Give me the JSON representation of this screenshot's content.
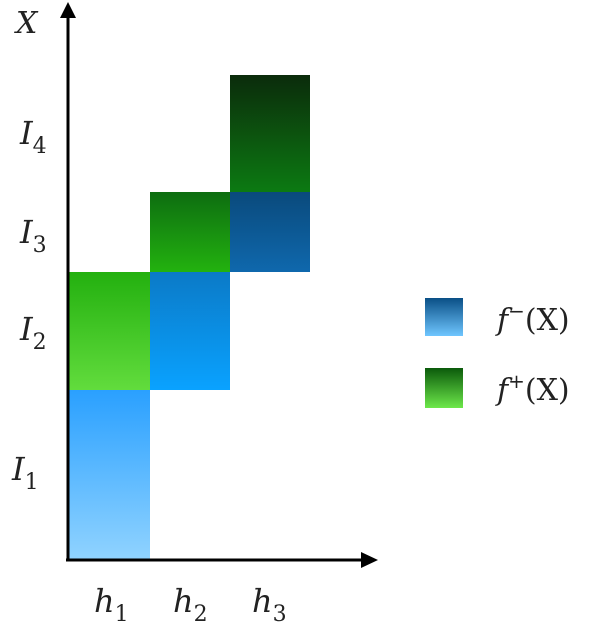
{
  "axes": {
    "y_label": "X",
    "x_ticks": [
      {
        "base": "h",
        "sub": "1"
      },
      {
        "base": "h",
        "sub": "2"
      },
      {
        "base": "h",
        "sub": "3"
      }
    ],
    "y_ticks": [
      {
        "base": "I",
        "sub": "1"
      },
      {
        "base": "I",
        "sub": "2"
      },
      {
        "base": "I",
        "sub": "3"
      },
      {
        "base": "I",
        "sub": "4"
      }
    ]
  },
  "legend": {
    "minus": {
      "base": "f",
      "sup": "−",
      "arg": "(X)"
    },
    "plus": {
      "base": "f",
      "sup": "+",
      "arg": "(X)"
    }
  },
  "colors": {
    "axis": "#000000",
    "blue_top": "#0a4f86",
    "blue_bottom": "#8fd2ff",
    "green_top": "#0b3a0b",
    "green_bottom": "#5fe03a"
  },
  "blocks": [
    {
      "column": "h1",
      "interval": "I1",
      "type": "minus"
    },
    {
      "column": "h1",
      "interval": "I2",
      "type": "plus"
    },
    {
      "column": "h2",
      "interval": "I2",
      "type": "minus"
    },
    {
      "column": "h2",
      "interval": "I3",
      "type": "plus"
    },
    {
      "column": "h3",
      "interval": "I3",
      "type": "minus"
    },
    {
      "column": "h3",
      "interval": "I4",
      "type": "plus"
    }
  ]
}
